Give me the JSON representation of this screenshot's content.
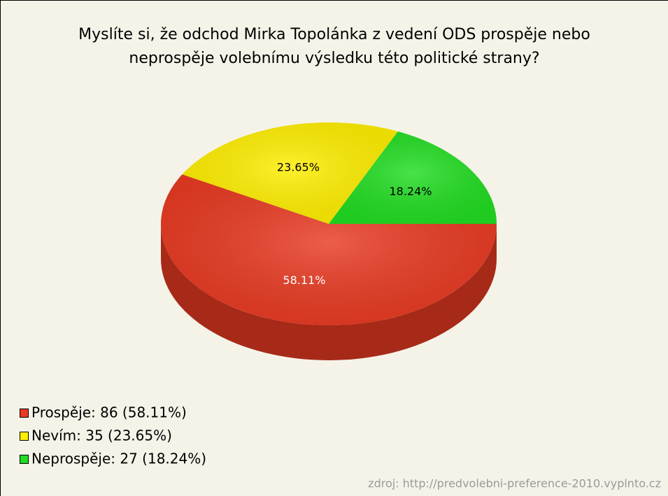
{
  "chart_data": {
    "type": "pie",
    "title": [
      "Myslíte si, že odchod Mirka Topolánka z vedení ODS prospěje nebo",
      "neprospěje volebnímu výsledku této politické strany?"
    ],
    "categories": [
      "Prospěje: 86 (58.11%)",
      "Nevím: 35 (23.65%)",
      "Neprospěje: 27 (18.24%)"
    ],
    "values": [
      58.11,
      23.65,
      18.24
    ],
    "value_labels": [
      "58.11%",
      "23.65%",
      "18.24%"
    ],
    "colors": [
      "#e83a22",
      "#ffee00",
      "#22dd22"
    ],
    "source": "zdroj: http://predvolebni-preference-2010.vyplnto.cz"
  }
}
